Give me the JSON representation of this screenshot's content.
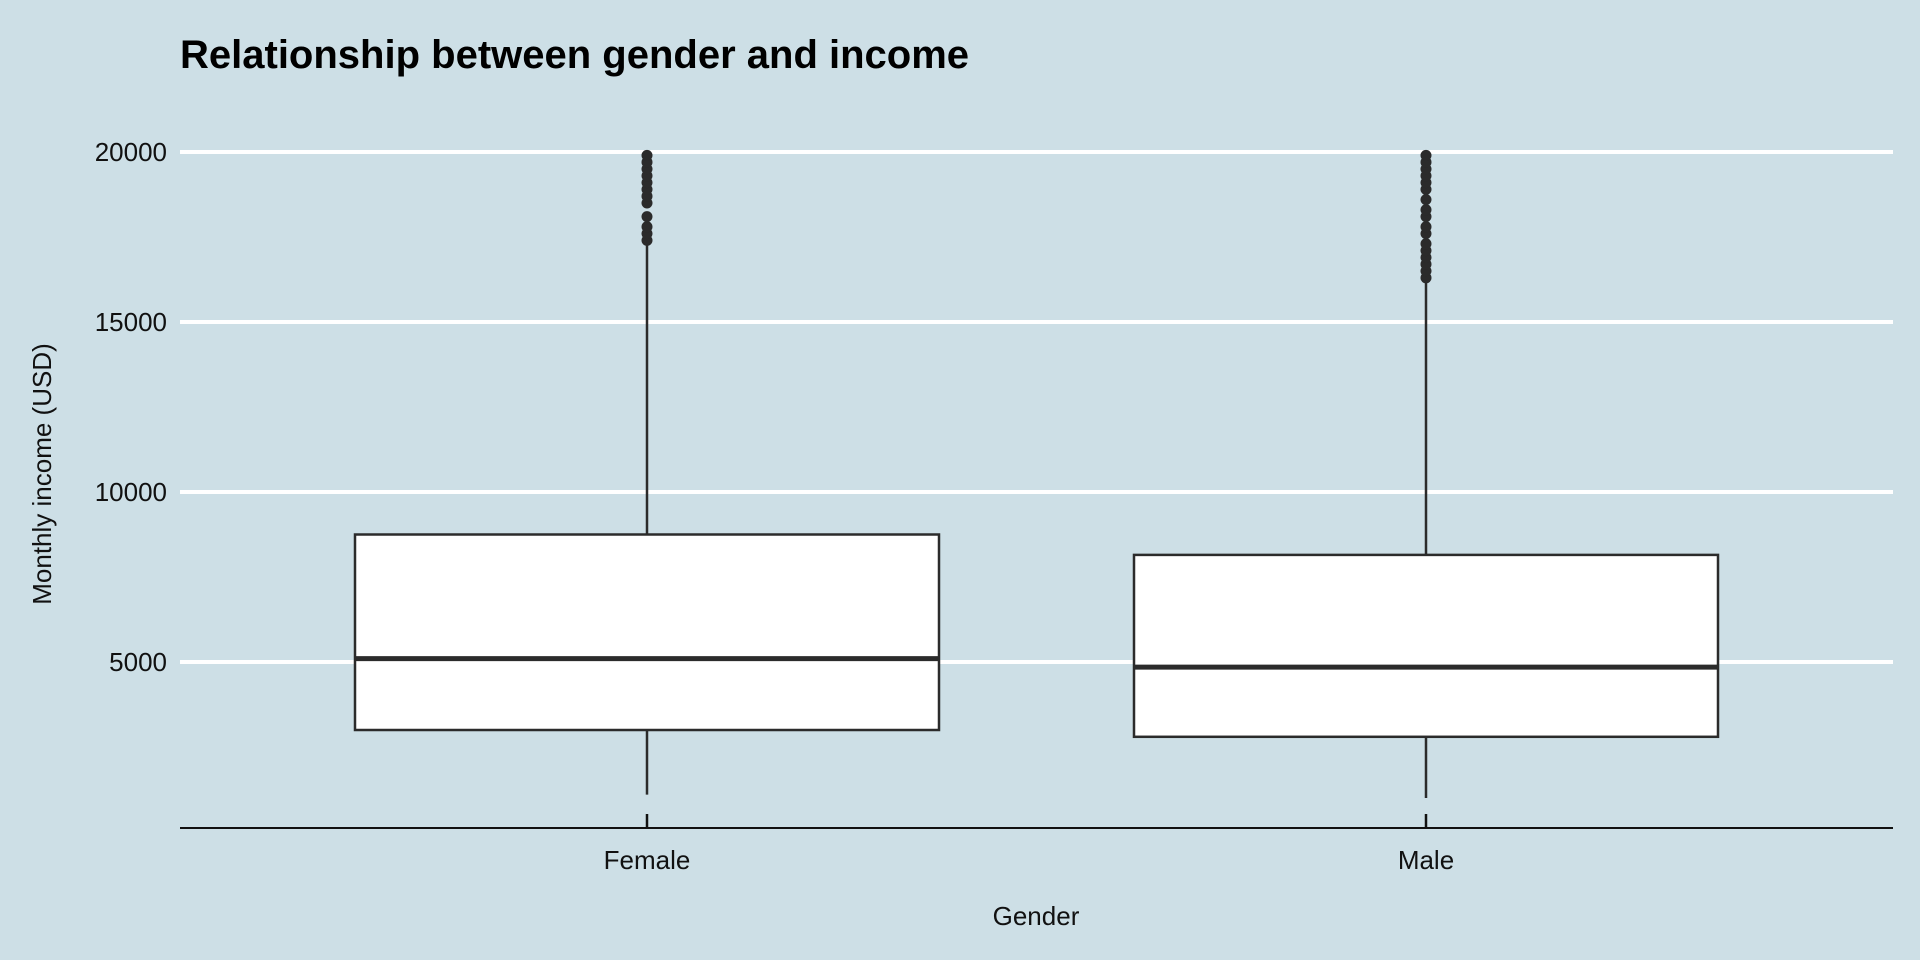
{
  "chart_data": {
    "type": "boxplot",
    "title": "Relationship between gender and income",
    "xlabel": "Gender",
    "ylabel": "Monthly income (USD)",
    "categories": [
      "Female",
      "Male"
    ],
    "ylim": [
      100,
      20000
    ],
    "yticks": [
      5000,
      10000,
      15000,
      20000
    ],
    "ytick_labels": [
      "5000",
      "10000",
      "15000",
      "20000"
    ],
    "grid": "horizontal major lines",
    "legend": "none",
    "colors": {
      "background": "#cddfe6",
      "gridline": "#ffffff",
      "box_fill": "#ffffff",
      "box_stroke": "#2b2b2b",
      "outlier": "#2b2b2b"
    },
    "boxes": [
      {
        "category": "Female",
        "whisker_low": 1100,
        "q1": 3000,
        "median": 5100,
        "q3": 8750,
        "whisker_high": 17300,
        "outliers": [
          17400,
          17600,
          17800,
          18100,
          18500,
          18700,
          18900,
          19100,
          19300,
          19500,
          19700,
          19900
        ]
      },
      {
        "category": "Male",
        "whisker_low": 1000,
        "q1": 2800,
        "median": 4850,
        "q3": 8150,
        "whisker_high": 16200,
        "outliers": [
          16300,
          16500,
          16700,
          16900,
          17100,
          17300,
          17600,
          17800,
          18100,
          18300,
          18600,
          18900,
          19100,
          19300,
          19500,
          19700,
          19900
        ]
      }
    ]
  }
}
